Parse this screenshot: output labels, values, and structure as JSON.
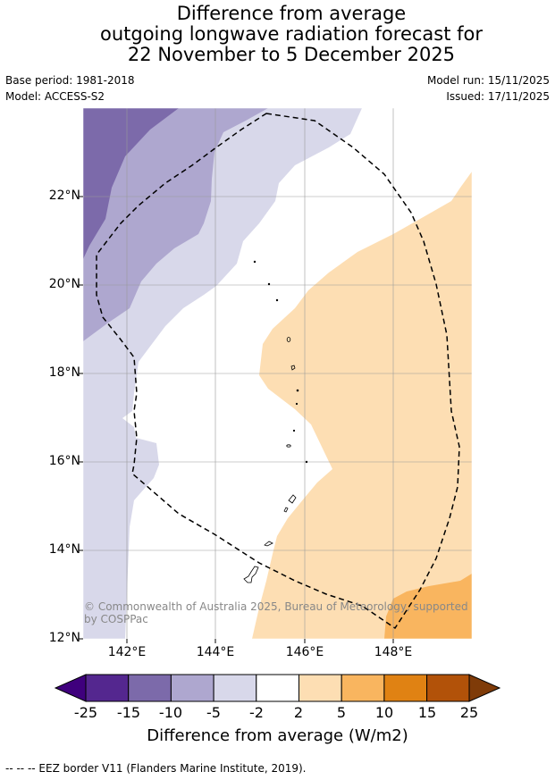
{
  "title": {
    "line1": "Difference from average",
    "line2": "outgoing longwave radiation forecast for",
    "line3": "22 November to 5 December 2025"
  },
  "meta": {
    "base_period": "Base period: 1981-2018",
    "model": "Model: ACCESS-S2",
    "model_run": "Model run: 15/11/2025",
    "issued": "Issued: 17/11/2025"
  },
  "map": {
    "lat_labels": [
      "22°N",
      "20°N",
      "18°N",
      "16°N",
      "14°N",
      "12°N"
    ],
    "lon_labels": [
      "142°E",
      "144°E",
      "146°E",
      "148°E"
    ],
    "copyright": "© Commonwealth of Australia 2025, Bureau of Meteorology, supported by COSPPac"
  },
  "colorbar": {
    "ticks": [
      "-25",
      "-15",
      "-10",
      "-5",
      "-2",
      "2",
      "5",
      "10",
      "15",
      "25"
    ],
    "colors": [
      "#54278f",
      "#7c6aaa",
      "#aea7cf",
      "#d8d8ea",
      "#ffffff",
      "#fddeb3",
      "#f9b55f",
      "#e08213",
      "#b25209"
    ],
    "extend_low": "#3f007d",
    "extend_high": "#7f3b08",
    "label": "Difference from average (W/m2)"
  },
  "footer": "--  --  -- EEZ border V11 (Flanders Marine Institute, 2019)."
}
